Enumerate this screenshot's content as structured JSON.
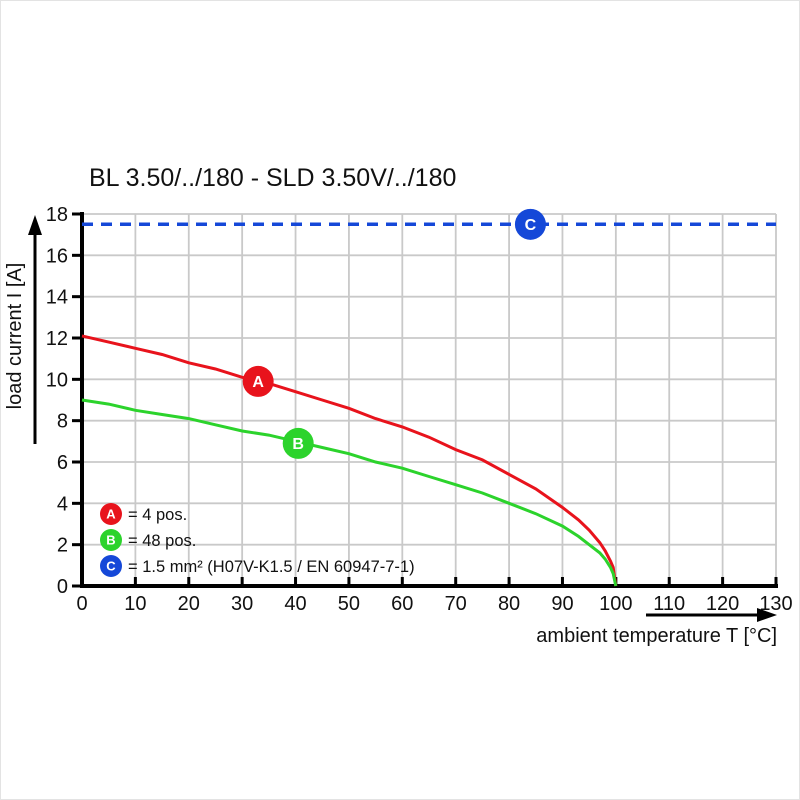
{
  "title": "BL 3.50/../180 - SLD 3.50V/../180",
  "chart_data": {
    "type": "line",
    "title": "BL 3.50/../180 - SLD 3.50V/../180",
    "xlabel": "ambient temperature T [°C]",
    "ylabel": "load current I [A]",
    "xlim": [
      0,
      130
    ],
    "ylim": [
      0,
      18
    ],
    "x_ticks": [
      0,
      10,
      20,
      30,
      40,
      50,
      60,
      70,
      80,
      90,
      100,
      110,
      120,
      130
    ],
    "y_ticks": [
      0,
      2,
      4,
      6,
      8,
      10,
      12,
      14,
      16,
      18
    ],
    "grid": true,
    "grid_color": "#c9c9c9",
    "axis_color": "#000000",
    "series": [
      {
        "name": "A",
        "legend_text": "= 4 pos.",
        "color": "#e8131c",
        "line_style": "solid",
        "points": [
          [
            0,
            12.1
          ],
          [
            5,
            11.8
          ],
          [
            10,
            11.5
          ],
          [
            15,
            11.2
          ],
          [
            20,
            10.8
          ],
          [
            25,
            10.5
          ],
          [
            30,
            10.1
          ],
          [
            35,
            9.8
          ],
          [
            40,
            9.4
          ],
          [
            45,
            9.0
          ],
          [
            50,
            8.6
          ],
          [
            55,
            8.1
          ],
          [
            60,
            7.7
          ],
          [
            65,
            7.2
          ],
          [
            70,
            6.6
          ],
          [
            75,
            6.1
          ],
          [
            80,
            5.4
          ],
          [
            85,
            4.7
          ],
          [
            90,
            3.8
          ],
          [
            93,
            3.2
          ],
          [
            95,
            2.7
          ],
          [
            97,
            2.1
          ],
          [
            98,
            1.7
          ],
          [
            99,
            1.2
          ],
          [
            99.5,
            0.9
          ],
          [
            100,
            0
          ]
        ],
        "marker": {
          "x": 33,
          "y": 9.9
        }
      },
      {
        "name": "B",
        "legend_text": "= 48 pos.",
        "color": "#2cd32c",
        "line_style": "solid",
        "points": [
          [
            0,
            9.0
          ],
          [
            5,
            8.8
          ],
          [
            10,
            8.5
          ],
          [
            15,
            8.3
          ],
          [
            20,
            8.1
          ],
          [
            25,
            7.8
          ],
          [
            30,
            7.5
          ],
          [
            35,
            7.3
          ],
          [
            40,
            7.0
          ],
          [
            45,
            6.7
          ],
          [
            50,
            6.4
          ],
          [
            55,
            6.0
          ],
          [
            60,
            5.7
          ],
          [
            65,
            5.3
          ],
          [
            70,
            4.9
          ],
          [
            75,
            4.5
          ],
          [
            80,
            4.0
          ],
          [
            85,
            3.5
          ],
          [
            90,
            2.9
          ],
          [
            93,
            2.4
          ],
          [
            95,
            2.0
          ],
          [
            97,
            1.6
          ],
          [
            98,
            1.3
          ],
          [
            99,
            0.9
          ],
          [
            99.5,
            0.6
          ],
          [
            100,
            0
          ]
        ],
        "marker": {
          "x": 40.5,
          "y": 6.9
        }
      },
      {
        "name": "C",
        "legend_text": "= 1.5 mm² (H07V-K1.5 / EN 60947-7-1)",
        "color": "#1548d8",
        "line_style": "dashed",
        "points": [
          [
            0,
            17.5
          ],
          [
            130,
            17.5
          ]
        ],
        "marker": {
          "x": 84,
          "y": 17.5
        }
      }
    ]
  }
}
